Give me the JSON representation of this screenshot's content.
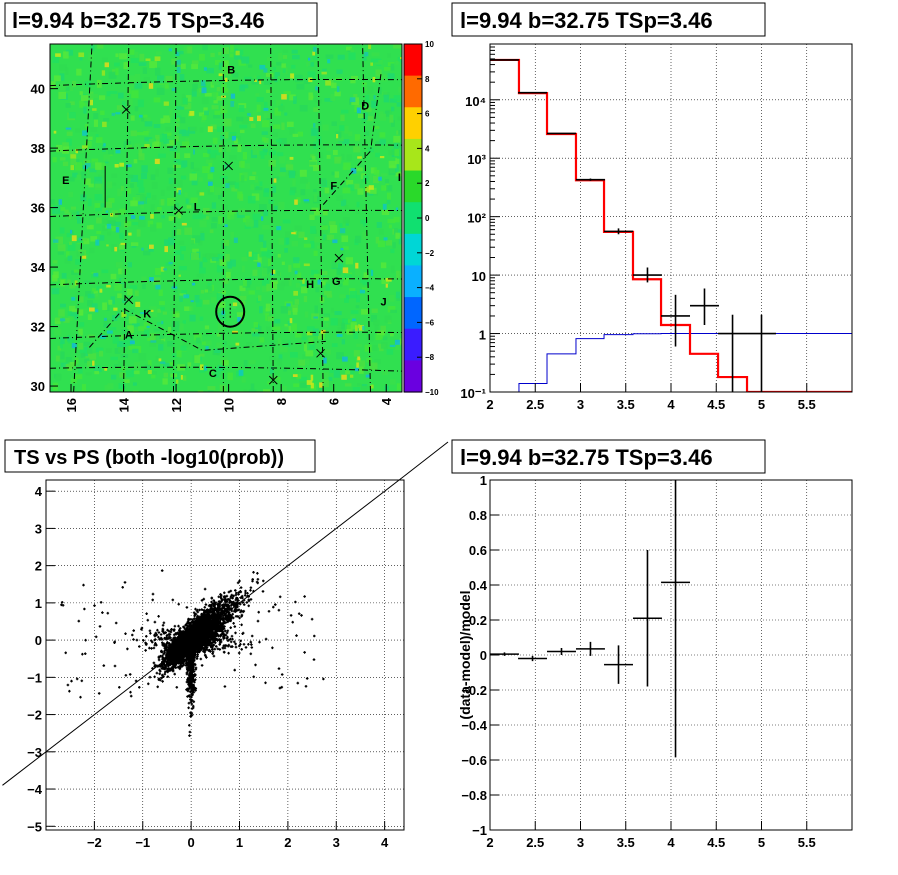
{
  "chart_data": [
    {
      "id": "skymap",
      "type": "heatmap",
      "title": "l=9.94 b=32.75 TSp=3.46",
      "xlim": [
        16.8,
        3.4
      ],
      "ylim": [
        29.8,
        41.5
      ],
      "x_ticks": [
        16,
        14,
        12,
        10,
        8,
        6,
        4
      ],
      "y_ticks": [
        30,
        32,
        34,
        36,
        38,
        40
      ],
      "colorbar": {
        "zlim": [
          -10,
          10
        ],
        "ticks": [
          10,
          8,
          6,
          4,
          2,
          0,
          -2,
          -4,
          -6,
          -8,
          -10
        ],
        "colors": [
          "#ff0000",
          "#ff6a00",
          "#ffd000",
          "#a8e61a",
          "#2ad92a",
          "#10e070",
          "#00d6d6",
          "#0ab0ff",
          "#0066ff",
          "#3a1cff",
          "#6a00e0"
        ]
      },
      "background": "#30e050",
      "region_labels": [
        {
          "text": "B",
          "x": 9.9,
          "y": 40.5
        },
        {
          "text": "D",
          "x": 4.8,
          "y": 39.3
        },
        {
          "text": "E",
          "x": 16.2,
          "y": 36.8
        },
        {
          "text": "F",
          "x": 6.0,
          "y": 36.6
        },
        {
          "text": "I",
          "x": 3.5,
          "y": 36.9
        },
        {
          "text": "L",
          "x": 11.2,
          "y": 35.9
        },
        {
          "text": "H",
          "x": 6.9,
          "y": 33.3
        },
        {
          "text": "G",
          "x": 5.9,
          "y": 33.4
        },
        {
          "text": "J",
          "x": 4.1,
          "y": 32.7
        },
        {
          "text": "K",
          "x": 13.1,
          "y": 32.3
        },
        {
          "text": "A",
          "x": 13.8,
          "y": 31.6
        },
        {
          "text": "C",
          "x": 10.6,
          "y": 30.3
        }
      ],
      "crosses": [
        {
          "x": 13.9,
          "y": 39.3
        },
        {
          "x": 10.0,
          "y": 37.4
        },
        {
          "x": 11.9,
          "y": 35.9
        },
        {
          "x": 5.8,
          "y": 34.3
        },
        {
          "x": 13.8,
          "y": 32.9
        },
        {
          "x": 6.5,
          "y": 31.1
        },
        {
          "x": 8.3,
          "y": 30.2
        }
      ],
      "source_circle": {
        "x": 9.94,
        "y": 32.5
      }
    },
    {
      "id": "spectrum",
      "type": "line",
      "title": "l=9.94 b=32.75 TSp=3.46",
      "xlim": [
        2,
        6
      ],
      "ylim": [
        0.1,
        90000
      ],
      "yscale": "log",
      "grid": true,
      "x_ticks": [
        2,
        2.5,
        3,
        3.5,
        4,
        4.5,
        5,
        5.5
      ],
      "y_ticks": [
        {
          "value": 0.1,
          "label": "10⁻¹"
        },
        {
          "value": 1,
          "label": "1"
        },
        {
          "value": 10,
          "label": "10"
        },
        {
          "value": 100,
          "label": "10²"
        },
        {
          "value": 1000,
          "label": "10³"
        },
        {
          "value": 10000,
          "label": "10⁴"
        }
      ],
      "bin_edges": [
        2.0,
        2.32,
        2.63,
        2.95,
        3.26,
        3.58,
        3.89,
        4.21,
        4.52,
        4.84,
        5.16,
        5.47,
        5.79,
        6.0
      ],
      "model_red": [
        48000,
        13000,
        2600,
        420,
        55,
        8.5,
        1.4,
        0.45,
        0.18,
        0.1,
        0.1,
        0.1,
        0.1
      ],
      "model_blue": [
        0.1,
        0.14,
        0.45,
        0.82,
        0.96,
        0.99,
        1.0,
        1.0,
        1.0,
        1.0,
        1.0,
        1.0,
        1.0
      ],
      "data_points": [
        {
          "x": 2.16,
          "xerr": 0.16,
          "y": 48000,
          "ylo": 47500,
          "yhi": 48500
        },
        {
          "x": 2.47,
          "xerr": 0.16,
          "y": 13200,
          "ylo": 13000,
          "yhi": 13400
        },
        {
          "x": 2.79,
          "xerr": 0.16,
          "y": 2650,
          "ylo": 2600,
          "yhi": 2700
        },
        {
          "x": 3.11,
          "xerr": 0.16,
          "y": 430,
          "ylo": 410,
          "yhi": 450
        },
        {
          "x": 3.42,
          "xerr": 0.16,
          "y": 56,
          "ylo": 50,
          "yhi": 63
        },
        {
          "x": 3.74,
          "xerr": 0.16,
          "y": 10,
          "ylo": 7.5,
          "yhi": 13.5
        },
        {
          "x": 4.05,
          "xerr": 0.16,
          "y": 2.0,
          "ylo": 0.6,
          "yhi": 4.6
        },
        {
          "x": 4.37,
          "xerr": 0.16,
          "y": 3.0,
          "ylo": 1.4,
          "yhi": 5.9
        },
        {
          "x": 4.68,
          "xerr": 0.16,
          "y": 1.0,
          "ylo": 0.1,
          "yhi": 2.1
        },
        {
          "x": 5.0,
          "xerr": 0.16,
          "y": 1.0,
          "ylo": 0.1,
          "yhi": 2.1
        }
      ],
      "colors": {
        "model": "#ff0000",
        "background_model": "#0000cc",
        "data": "#000000"
      }
    },
    {
      "id": "ts_vs_ps",
      "type": "scatter",
      "title": "TS vs PS (both -log10(prob))",
      "xlim": [
        -3.0,
        4.4
      ],
      "ylim": [
        -5.1,
        4.3
      ],
      "grid": true,
      "x_ticks": [
        -2,
        -1,
        0,
        1,
        2,
        3,
        4
      ],
      "y_ticks": [
        -5,
        -4,
        -3,
        -2,
        -1,
        0,
        1,
        2,
        3,
        4
      ],
      "reference_line": {
        "slope": 1.0,
        "intercept": 0.0
      },
      "color": "#000000"
    },
    {
      "id": "residuals",
      "type": "scatter",
      "title": "l=9.94 b=32.75 TSp=3.46",
      "ylabel": "(data-model)/model",
      "xlim": [
        2,
        6
      ],
      "ylim": [
        -1,
        1
      ],
      "grid": true,
      "x_ticks": [
        2,
        2.5,
        3,
        3.5,
        4,
        4.5,
        5,
        5.5
      ],
      "y_ticks": [
        -1,
        -0.8,
        -0.6,
        -0.4,
        -0.2,
        0,
        0.2,
        0.4,
        0.6,
        0.8,
        1
      ],
      "points": [
        {
          "x": 2.16,
          "xerr": 0.16,
          "y": 0.005,
          "err": 0.01
        },
        {
          "x": 2.47,
          "xerr": 0.16,
          "y": -0.02,
          "err": 0.015
        },
        {
          "x": 2.79,
          "xerr": 0.16,
          "y": 0.02,
          "err": 0.02
        },
        {
          "x": 3.11,
          "xerr": 0.16,
          "y": 0.035,
          "err": 0.04
        },
        {
          "x": 3.42,
          "xerr": 0.16,
          "y": -0.055,
          "err": 0.11
        },
        {
          "x": 3.74,
          "xerr": 0.16,
          "y": 0.21,
          "err": 0.39
        },
        {
          "x": 4.05,
          "xerr": 0.16,
          "y": 0.415,
          "err": 1.0
        }
      ]
    }
  ]
}
